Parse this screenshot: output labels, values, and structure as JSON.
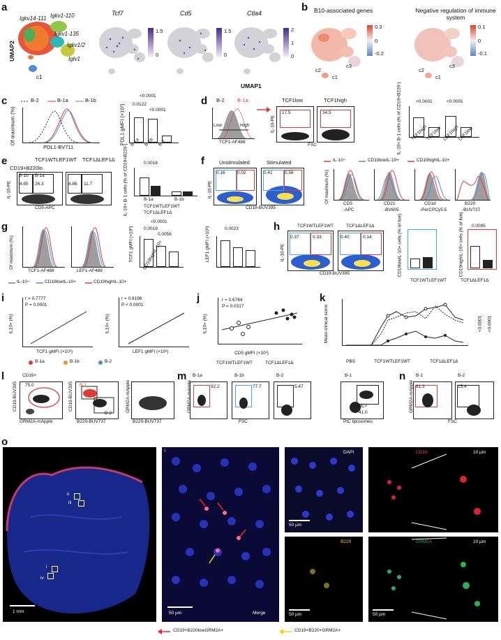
{
  "panels": [
    "a",
    "b",
    "c",
    "d",
    "e",
    "f",
    "g",
    "h",
    "i",
    "j",
    "k",
    "l",
    "m",
    "n",
    "o"
  ],
  "a": {
    "umap_y": "UMAP2",
    "umap_x": "UMAP1",
    "clusters": [
      "Igkv14-111",
      "Igkv1-110",
      "Igkv1-135",
      "Igkv1/2",
      "Iglv1",
      "c1"
    ],
    "genes": [
      "Tcf7",
      "Cd5",
      "Ctla4"
    ],
    "scales": [
      [
        "1.5",
        "0"
      ],
      [
        "1.5",
        "0"
      ],
      [
        "2",
        "1",
        "0"
      ]
    ]
  },
  "b": {
    "titles": [
      "B10-associated genes",
      "Negative regulation of immune system"
    ],
    "scale1": [
      "0.3",
      "0",
      "-0.2"
    ],
    "scale2": [
      "0.1",
      "0",
      "-0.1"
    ],
    "labels": [
      "c2",
      "c3",
      "c1"
    ]
  },
  "c": {
    "legend": [
      "B-2",
      "B-1a",
      "B-1b"
    ],
    "ylabel": "Of maximum (%)",
    "xlabel": "PDL1-BV711",
    "bar_ylabel": "PDL1 gMFI (×10³)",
    "pvals": [
      "<0.0001",
      "0.0122",
      "<0.0001"
    ],
    "cats": [
      "B-1a",
      "B-1b",
      "B-2"
    ],
    "yticks": [
      "2.0",
      "1.5",
      "1.0",
      "0.5",
      "0"
    ]
  },
  "d": {
    "legend": [
      "B-2",
      "B-1a"
    ],
    "hist_x": "TCF1-AF488",
    "low": "Low",
    "high": "High",
    "gates": [
      "TCF1low",
      "TCF1high"
    ],
    "gate_vals": [
      "17.5",
      "34.5"
    ],
    "ylabel": "IL-10-PE",
    "xlabel": "FSC",
    "bar_ylabel": "IL-10+ B-1 cells (% of CD19+B220-)",
    "pvals": [
      "<0.0001",
      "<0.0001"
    ],
    "cats": [
      "TCF1high",
      "TCF1low",
      "LEF1high",
      "LEF1low"
    ],
    "yticks": [
      "60",
      "40",
      "20",
      "0"
    ]
  },
  "e": {
    "title": "CD19+B220lo",
    "groups": [
      "TCF1WTLEF1WT",
      "TCF1ΔLEF1Δ"
    ],
    "gate_names": [
      "B-1b",
      "B-1a"
    ],
    "vals1": [
      "4.65",
      "26.3"
    ],
    "vals2": [
      "4.86",
      "11.7"
    ],
    "ylabel": "IL-10-PE",
    "xlabel": "CD5-APC",
    "bar_ylabel": "IL-10+ B-1 cells (% of CD19+B220-)",
    "pval": "0.0018",
    "cats": [
      "B-1a",
      "B-1b"
    ],
    "yticks": [
      "40",
      "30",
      "20",
      "10",
      "0"
    ],
    "legend": [
      "TCF1WTLEF1WT",
      "TCF1ΔLEF1Δ"
    ]
  },
  "f": {
    "titles": [
      "Unstimulated",
      "Stimulated"
    ],
    "vals": [
      "0.16",
      "0.02",
      "0.41",
      "0.56"
    ],
    "ylabel": "IL-10-PE",
    "xlabel": "CD19-BUV395",
    "legend": [
      "IL-10−",
      "CD19lowIL-10+",
      "CD19highIL-10+"
    ],
    "hist_ylabel": "Of maximum (%)",
    "markers": [
      "CD5",
      "CD21",
      "CD1d",
      "B220"
    ],
    "marker_fl": [
      "-APC",
      "-BV605",
      "-PerCPCy5.5",
      "-BUV737"
    ]
  },
  "g": {
    "hist_ylabel": "Of maximum (%)",
    "hist_x": [
      "TCF1-AF488",
      "LEF1-AF488"
    ],
    "legend": [
      "IL-10−",
      "CD19lowIL-10+",
      "CD19highIL-10+"
    ],
    "tcf_ylabel": "TCF1 gMFI (×10³)",
    "tcf_pvals": [
      "<0.0001",
      "0.0019",
      "0.0056"
    ],
    "tcf_yticks": [
      "3",
      "2",
      "1",
      "0"
    ],
    "lef_ylabel": "LEF1 gMFI (×10³)",
    "lef_pval": "0.0023",
    "lef_yticks": [
      "3",
      "2",
      "1",
      "0"
    ],
    "cats": [
      "CD19highIL-10+",
      "CD19lowIL-10+",
      "IL-10−"
    ]
  },
  "h": {
    "groups": [
      "TCF1WTLEF1WT",
      "TCF1ΔLEF1Δ"
    ],
    "vals": [
      "0.37",
      "0.33",
      "0.40",
      "0.14"
    ],
    "ylabel": "IL-10-PE",
    "xlabel": "CD19-BUV395",
    "bar1_ylabel": "CD19lowIL-10+ cells (% of live)",
    "bar2_ylabel": "CD19highIL-10+ cells (% of live)",
    "pval": "0.0095",
    "yticks": [
      "1.0",
      "0.5",
      "0"
    ],
    "legend": [
      "TCF1WTLEF1WT",
      "TCF1ΔLEF1Δ"
    ]
  },
  "i": {
    "stat1": [
      "r = 0.7777",
      "P = 0.0001"
    ],
    "stat2": [
      "r = 0.8196",
      "P < 0.0001"
    ],
    "ylabel": "IL10+ (%)",
    "xlabel1": "TCF1 gMFI (×10³)",
    "xlabel2": "LEF1 gMFI (×10³)",
    "yticks": [
      "40",
      "30",
      "20",
      "10",
      "0"
    ],
    "xticks1": [
      "2",
      "4",
      "6",
      "8"
    ],
    "xticks2": [
      "2",
      "3",
      "4",
      "5",
      "6"
    ],
    "legend": [
      "B-1a",
      "B-1b",
      "B-2"
    ]
  },
  "j": {
    "stat": [
      "r = 0.6764",
      "P = 0.0317"
    ],
    "ylabel": "IL10+ (%)",
    "xlabel": "CD5 gMFI (×10³)",
    "yticks": [
      "30",
      "20",
      "10",
      "0"
    ],
    "xticks": [
      "0.8",
      "1.0",
      "1.2",
      "1.4",
      "1.6"
    ],
    "legend": [
      "TCF1WTLEF1WT",
      "TCF1ΔLEF1Δ"
    ]
  },
  "k": {
    "ylabel": "Mean clinical score",
    "xticks": [
      "10",
      "12",
      "14",
      "16",
      "18",
      "20",
      "22",
      "24"
    ],
    "yticks": [
      "3",
      "2",
      "1",
      "0"
    ],
    "pvals": [
      "<0.0001",
      "<0.0001"
    ],
    "legend": [
      "PBS",
      "TCF1WTLEF1WT",
      "TCF1ΔLEF1Δ"
    ]
  },
  "l": {
    "title": "CD19+",
    "val": "75.0",
    "ylabel1": "CD19-BUV395",
    "xlabel1": "GRM2A-mApple",
    "ylabel2": "CD19-BUV395",
    "xlabel2": "B220-BUV737",
    "gates": [
      "B-1",
      "B-2"
    ],
    "ylabel3": "GRM2A-mApple",
    "xlabel3": "B220-BUV737"
  },
  "m": {
    "titles": [
      "B-1a",
      "B-1b",
      "B-2",
      "B-1"
    ],
    "vals": [
      "92.2",
      "77.7",
      "5.47",
      "41.0"
    ],
    "ylabel": "GRM2A-mApple",
    "xlabel": "FSC",
    "xlabel4": "PtC liposomes",
    "ptc": "PtC+"
  },
  "n": {
    "titles": [
      "B-1",
      "B-2"
    ],
    "vals": [
      "81.3",
      "15.4"
    ],
    "ylabel": "GRM2A-mApple",
    "xlabel": "FSC"
  },
  "o": {
    "scale1": "1 mm",
    "regions": [
      "ii",
      "iii",
      "i",
      "iv"
    ],
    "region_i": "i",
    "scale2": "50 µm",
    "merge": "Merge",
    "channels": [
      "DAPI",
      "CD19",
      "B220",
      "GRM2A"
    ],
    "scale3": "50 µm",
    "scale4": "10 µm",
    "legend": [
      "CD19+B220lowGRM2A+",
      "CD19+B220+GRM2A+"
    ]
  },
  "colors": {
    "b1a": "#e53935",
    "b1b": "#f0941f",
    "b2": "#4a8fd8",
    "purple": "#6c4fa8",
    "red_arrow": "#ff2020",
    "yellow_arrow": "#ffd400",
    "blue_gate": "#42a5f5"
  }
}
